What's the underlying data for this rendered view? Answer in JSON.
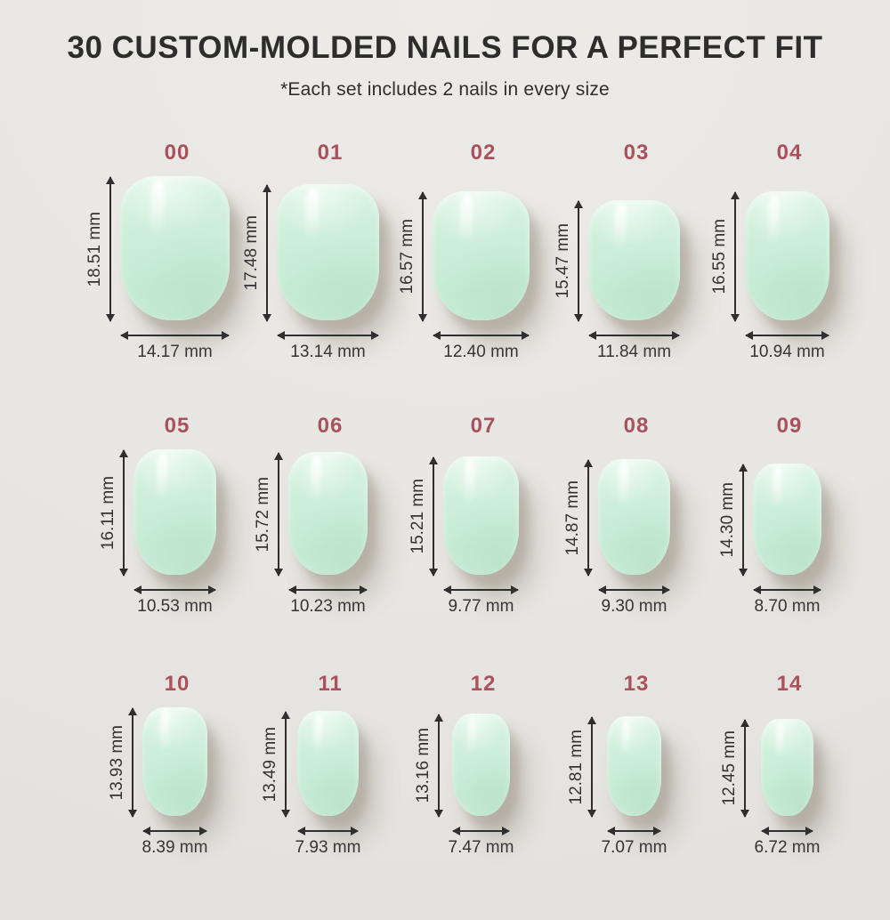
{
  "header": {
    "title": "30 CUSTOM-MOLDED NAILS FOR A PERFECT FIT",
    "subtitle": "*Each set includes 2 nails in every size"
  },
  "unit": "mm",
  "colors": {
    "background": "#e8e6e2",
    "accent_size_number": "#a9515d",
    "measurement_text": "#333333",
    "title_text": "#2c2d2c",
    "nail_mint": "#cdeeda",
    "arrow": "#2f2f2f"
  },
  "chart_data": {
    "type": "table",
    "title": "30 CUSTOM-MOLDED NAILS FOR A PERFECT FIT",
    "subtitle": "*Each set includes 2 nails in every size",
    "columns": [
      "size_id",
      "height_mm",
      "width_mm"
    ],
    "rows_per_band": 5,
    "sizes": [
      {
        "id": "00",
        "height_mm": "18.51",
        "width_mm": "14.17"
      },
      {
        "id": "01",
        "height_mm": "17.48",
        "width_mm": "13.14"
      },
      {
        "id": "02",
        "height_mm": "16.57",
        "width_mm": "12.40"
      },
      {
        "id": "03",
        "height_mm": "15.47",
        "width_mm": "11.84"
      },
      {
        "id": "04",
        "height_mm": "16.55",
        "width_mm": "10.94"
      },
      {
        "id": "05",
        "height_mm": "16.11",
        "width_mm": "10.53"
      },
      {
        "id": "06",
        "height_mm": "15.72",
        "width_mm": "10.23"
      },
      {
        "id": "07",
        "height_mm": "15.21",
        "width_mm": "9.77"
      },
      {
        "id": "08",
        "height_mm": "14.87",
        "width_mm": "9.30"
      },
      {
        "id": "09",
        "height_mm": "14.30",
        "width_mm": "8.70"
      },
      {
        "id": "10",
        "height_mm": "13.93",
        "width_mm": "8.39"
      },
      {
        "id": "11",
        "height_mm": "13.49",
        "width_mm": "7.93"
      },
      {
        "id": "12",
        "height_mm": "13.16",
        "width_mm": "7.47"
      },
      {
        "id": "13",
        "height_mm": "12.81",
        "width_mm": "7.07"
      },
      {
        "id": "14",
        "height_mm": "12.45",
        "width_mm": "6.72"
      }
    ]
  }
}
